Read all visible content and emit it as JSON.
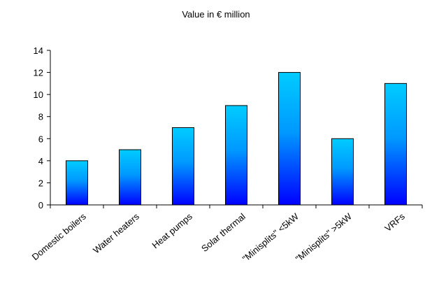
{
  "chart_data": {
    "type": "bar",
    "title": "Value in € million",
    "xlabel": "",
    "ylabel": "",
    "categories": [
      "Domestic boilers",
      "Water heaters",
      "Heat pumps",
      "Solar thermal",
      "\"Minisplits\" <5kW",
      "\"Minisplits\" >5kW",
      "VRFs"
    ],
    "values": [
      4,
      5,
      7,
      9,
      12,
      6,
      11
    ],
    "ylim": [
      0,
      14
    ],
    "yticks": [
      "0",
      "2",
      "4",
      "6",
      "8",
      "10",
      "12",
      "14"
    ],
    "grid": false,
    "legend": "none",
    "bar_gradient": {
      "top": "#00ccff",
      "bottom": "#0000ff"
    },
    "bar_outline": "#000000"
  }
}
